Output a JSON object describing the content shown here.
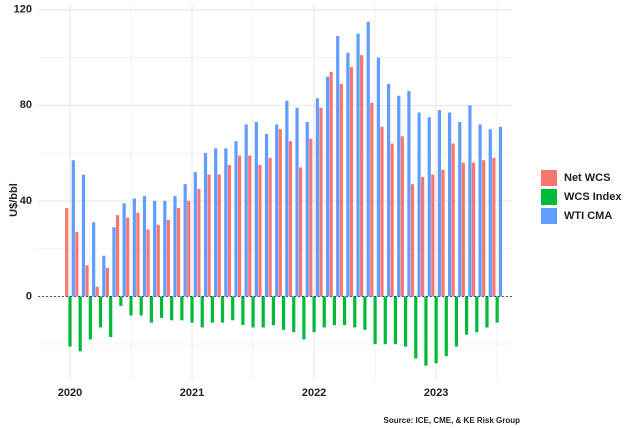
{
  "chart_data": {
    "type": "bar",
    "y_label": "U$/bbl",
    "source": "Source: ICE, CME, & KE Risk Group",
    "categories": [
      "2020",
      null,
      null,
      null,
      null,
      null,
      null,
      null,
      null,
      null,
      null,
      null,
      "2021",
      null,
      null,
      null,
      null,
      null,
      null,
      null,
      null,
      null,
      null,
      null,
      "2022",
      null,
      null,
      null,
      null,
      null,
      null,
      null,
      null,
      null,
      null,
      null,
      "2023",
      null,
      null,
      null,
      null,
      null,
      null
    ],
    "series": [
      {
        "name": "Net WCS",
        "color": "#F8766D",
        "values": [
          37,
          27,
          13,
          4,
          12,
          34,
          33,
          35,
          28,
          30,
          32,
          37,
          40,
          45,
          51,
          51,
          55,
          59,
          59,
          55,
          58,
          70,
          65,
          54,
          66,
          79,
          94,
          89,
          96,
          101,
          81,
          71,
          64,
          67,
          47,
          50,
          51,
          53,
          64,
          56,
          56,
          57,
          58
        ]
      },
      {
        "name": "WCS Index",
        "color": "#00BA38",
        "values": [
          -21,
          -23,
          -18,
          -13,
          -17,
          -4,
          -8,
          -8,
          -11,
          -9,
          -10,
          -10,
          -11,
          -13,
          -11,
          -11,
          -10,
          -12,
          -13,
          -13,
          -12,
          -14,
          -15,
          -18,
          -15,
          -13,
          -12,
          -12,
          -13,
          -14,
          -20,
          -20,
          -20,
          -21,
          -26,
          -29,
          -28,
          -25,
          -21,
          -16,
          -15,
          -13,
          -11
        ]
      },
      {
        "name": "WTI CMA",
        "color": "#619CFF",
        "values": [
          57,
          51,
          31,
          17,
          29,
          39,
          41,
          42,
          40,
          40,
          42,
          47,
          52,
          60,
          62,
          62,
          65,
          72,
          73,
          68,
          72,
          82,
          79,
          73,
          83,
          92,
          109,
          102,
          110,
          115,
          100,
          89,
          84,
          86,
          77,
          75,
          78,
          77,
          73,
          80,
          72,
          70,
          71
        ]
      }
    ],
    "ylim": [
      -35,
      122
    ],
    "yticks": [
      0,
      40,
      80,
      120
    ],
    "grid": true,
    "zero_line": true,
    "legend": "right"
  }
}
